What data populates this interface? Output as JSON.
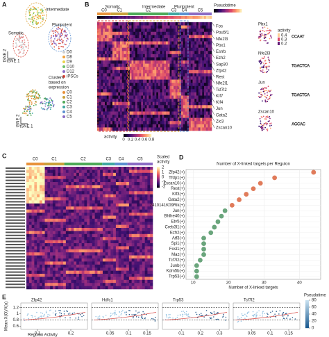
{
  "panel_a": {
    "label": "A",
    "groups": [
      {
        "name": "Intermediate",
        "color": "#d89a2a"
      },
      {
        "name": "Somatic",
        "color": "#d9473a"
      },
      {
        "name": "Pluripotent",
        "color": "#5b8fd0"
      }
    ],
    "axis_y": "tSNE 2",
    "axis_x": "tSNE 1",
    "legend": [
      {
        "name": "D0",
        "color": "#cfcfcf"
      },
      {
        "name": "D8",
        "color": "#f2a23a"
      },
      {
        "name": "D9",
        "color": "#e9d24a"
      },
      {
        "name": "D10",
        "color": "#6cbf6a"
      },
      {
        "name": "D12",
        "color": "#8b6bc4"
      },
      {
        "name": "iPSCs",
        "color": "#d9473a"
      }
    ],
    "clusters_title": [
      "Clusters",
      "based on",
      "expression"
    ],
    "clusters": [
      {
        "name": "C0",
        "color": "#e8923a"
      },
      {
        "name": "C1",
        "color": "#c9a13a"
      },
      {
        "name": "C2",
        "color": "#4daa57"
      },
      {
        "name": "C3",
        "color": "#3fa7a0"
      },
      {
        "name": "C4",
        "color": "#5b8fd0"
      },
      {
        "name": "C5",
        "color": "#8b6bc4"
      }
    ]
  },
  "panel_b": {
    "label": "B",
    "colorbar_title": "Pseudotime",
    "genes": [
      "Fos",
      "Pou5f1",
      "Nfe2l3",
      "Pbx1",
      "Esrrb",
      "Ezh2",
      "Sap30",
      "Zfp42",
      "Rest",
      "Nfe2l1",
      "Tcf7l2",
      "Klf7",
      "Klf4",
      "Jun",
      "Gata2",
      "Zic3",
      "Zscan10"
    ],
    "activity_title": "activity",
    "activity_ticks": [
      0.0,
      0.2,
      0.4,
      0.6,
      0.8
    ],
    "motifs": [
      {
        "gene": "Pbx1",
        "logo": "CCAAT"
      },
      {
        "gene": "Nfe2l3",
        "logo": "TGACTCA"
      },
      {
        "gene": "Jun",
        "logo": "TGACTCA"
      },
      {
        "gene": "Zscan10",
        "logo": "AGCAC"
      }
    ],
    "motif_legend_title": "activity",
    "motif_legend_ticks": [
      0.4,
      0.3,
      0.2
    ]
  },
  "panel_c": {
    "label": "C",
    "colorbar_title": [
      "Scaled",
      "activity"
    ],
    "colorbar_ticks": [
      2,
      1,
      0,
      -1,
      -2
    ]
  },
  "chart_data": {
    "type": "dot",
    "label": "D",
    "title": "Number of X-linked targets per Regulon",
    "x_label": "Number of X-linked targets",
    "categories": [
      "Zfp42(+)",
      "Tfdp1(+)",
      "Zscan10(+)",
      "Rest(+)",
      "Klf3(+)",
      "Gata2(+)",
      "2410141K09Rik(+)",
      "Jun(+)",
      "Bhlhe40(+)",
      "Etv5(+)",
      "Creb3l1(+)",
      "Ezh2(+)",
      "Atf3(+)",
      "Spi1(+)",
      "Fosl1(+)",
      "Maz(+)",
      "Tcf7l2(+)",
      "Junb(+)",
      "Kdm5b(+)",
      "Trp53(+)"
    ],
    "values": [
      44,
      33,
      29,
      27,
      25,
      23,
      21,
      19,
      18,
      17,
      16,
      15,
      13,
      13,
      13,
      13,
      12,
      11,
      11,
      11
    ],
    "colors": [
      "#e07b5a",
      "#e07b5a",
      "#e07b5a",
      "#e07b5a",
      "#e07b5a",
      "#e07b5a",
      "#e07b5a",
      "#6aa57c",
      "#6aa57c",
      "#6aa57c",
      "#6aa57c",
      "#6aa57c",
      "#6aa57c",
      "#6aa57c",
      "#6aa57c",
      "#6aa57c",
      "#6aa57c",
      "#6aa57c",
      "#6aa57c",
      "#6aa57c"
    ],
    "xlim": [
      8,
      46
    ],
    "xticks": [
      10,
      20,
      30,
      40
    ],
    "grid": true
  },
  "panel_e": {
    "label": "E",
    "y_label": "Mean X(O)/X(a)",
    "x_label": "Regulon Activity",
    "ylim": [
      0.5,
      1.35
    ],
    "yticks": [
      0.6,
      0.8,
      1.0,
      1.2
    ],
    "thresholds": [
      0.8,
      1.2
    ],
    "panels": [
      {
        "title": "Zfp42",
        "xlim": [
          0.05,
          0.25
        ],
        "xticks": [
          0.1,
          0.2
        ]
      },
      {
        "title": "Hdfc1",
        "xlim": [
          0.0,
          0.18
        ],
        "xticks": [
          0.05,
          0.1,
          0.15
        ]
      },
      {
        "title": "Trp53",
        "xlim": [
          0.0,
          0.35
        ],
        "xticks": [
          0.1,
          0.2,
          0.3
        ]
      },
      {
        "title": "Tcf7l2",
        "xlim": [
          0.0,
          0.18
        ],
        "xticks": [
          0.05,
          0.1,
          0.15
        ]
      }
    ],
    "colorbar_title": "Pseudotime",
    "colorbar_lim": [
      0,
      80
    ],
    "colorbar_ticks": [
      0,
      20,
      40,
      60,
      80
    ]
  }
}
